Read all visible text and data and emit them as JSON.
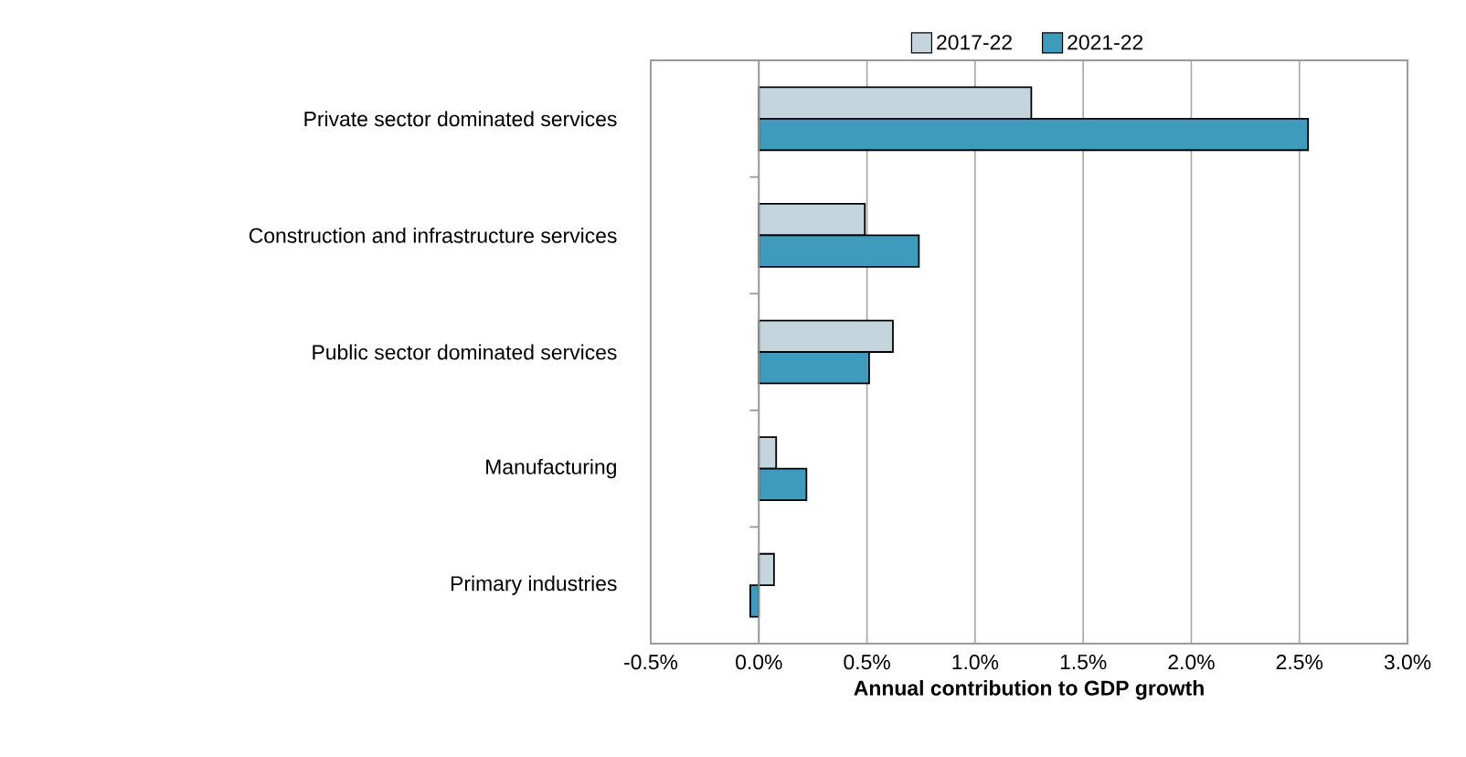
{
  "chart_data": {
    "type": "bar",
    "orientation": "horizontal",
    "xlabel": "Annual contribution to GDP growth",
    "categories": [
      "Private sector dominated services",
      "Construction and infrastructure services",
      "Public sector dominated services",
      "Manufacturing",
      "Primary industries"
    ],
    "series": [
      {
        "name": "2017-22",
        "color": "#c5d5dd",
        "values": [
          1.26,
          0.49,
          0.62,
          0.08,
          0.07
        ]
      },
      {
        "name": "2021-22",
        "color": "#3e9bbb",
        "values": [
          2.54,
          0.74,
          0.51,
          0.22,
          -0.04
        ]
      }
    ],
    "xlim": [
      -0.5,
      3.0
    ],
    "xticks": [
      {
        "value": -0.5,
        "label": "-0.5%"
      },
      {
        "value": 0.0,
        "label": "0.0%"
      },
      {
        "value": 0.5,
        "label": "0.5%"
      },
      {
        "value": 1.0,
        "label": "1.0%"
      },
      {
        "value": 1.5,
        "label": "1.5%"
      },
      {
        "value": 2.0,
        "label": "2.0%"
      },
      {
        "value": 2.5,
        "label": "2.5%"
      },
      {
        "value": 3.0,
        "label": "3.0%"
      }
    ],
    "grid": "x",
    "legend": "top"
  }
}
